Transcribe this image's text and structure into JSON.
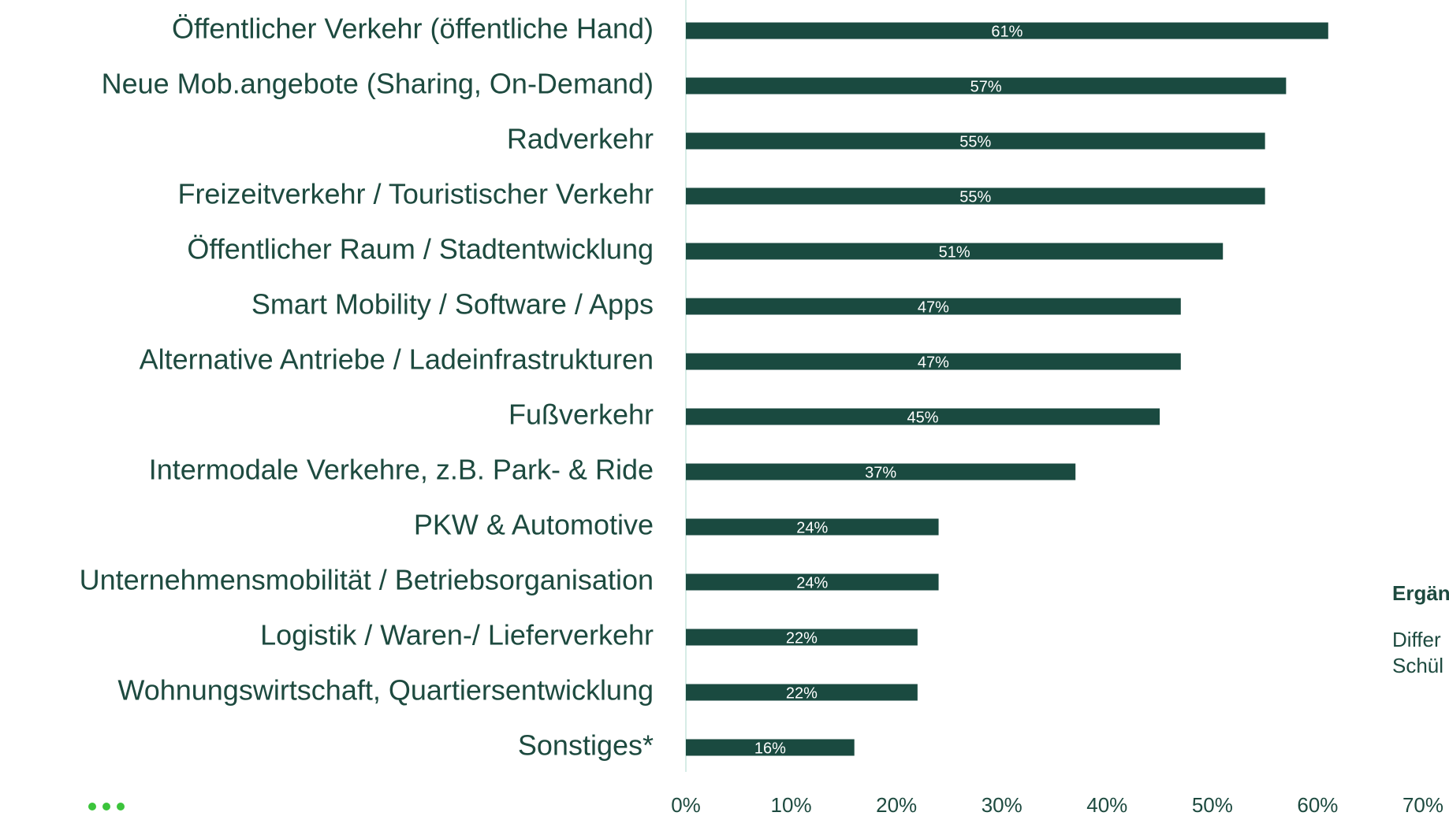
{
  "chart_data": {
    "type": "bar",
    "orientation": "horizontal",
    "categories": [
      "Öffentlicher Verkehr (öffentliche Hand)",
      "Neue Mob.angebote (Sharing, On-Demand)",
      "Radverkehr",
      "Freizeitverkehr / Touristischer Verkehr",
      "Öffentlicher Raum / Stadtentwicklung",
      "Smart Mobility / Software / Apps",
      "Alternative Antriebe / Ladeinfrastrukturen",
      "Fußverkehr",
      "Intermodale Verkehre, z.B. Park- & Ride",
      "PKW & Automotive",
      "Unternehmensmobilität / Betriebsorganisation",
      "Logistik / Waren-/ Lieferverkehr",
      "Wohnungswirtschaft, Quartiersentwicklung",
      "Sonstiges*"
    ],
    "values": [
      61,
      57,
      55,
      55,
      51,
      47,
      47,
      45,
      37,
      24,
      24,
      22,
      22,
      16
    ],
    "value_labels": [
      "61%",
      "57%",
      "55%",
      "55%",
      "51%",
      "47%",
      "47%",
      "45%",
      "37%",
      "24%",
      "24%",
      "22%",
      "22%",
      "16%"
    ],
    "color": "#1a4a40",
    "xlim": [
      0,
      70
    ],
    "xticks": [
      {
        "value": 0,
        "label": "0%"
      },
      {
        "value": 10,
        "label": "10%"
      },
      {
        "value": 20,
        "label": "20%"
      },
      {
        "value": 30,
        "label": "30%"
      },
      {
        "value": 40,
        "label": "40%"
      },
      {
        "value": 50,
        "label": "50%"
      },
      {
        "value": 60,
        "label": "60%"
      },
      {
        "value": 70,
        "label": "70%"
      }
    ],
    "annotations": [
      "Ergän",
      "Differ",
      "Schül"
    ]
  }
}
